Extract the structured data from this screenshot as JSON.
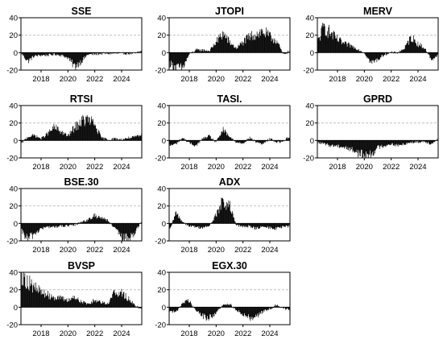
{
  "chart_data": [
    {
      "type": "area",
      "title": "SSE",
      "ylim": [
        -20,
        40
      ],
      "yticks": [
        -20,
        0,
        20,
        40
      ],
      "xlim": [
        2016.5,
        2025.5
      ],
      "xticks": [
        2018,
        2020,
        2022,
        2024
      ],
      "grid": true,
      "x": [
        2016.5,
        2017.0,
        2017.5,
        2018.0,
        2018.5,
        2019.0,
        2019.5,
        2020.0,
        2020.5,
        2021.0,
        2021.5,
        2022.0,
        2022.5,
        2023.0,
        2023.5,
        2024.0,
        2024.5,
        2025.0,
        2025.5
      ],
      "values": [
        0,
        -10,
        -4,
        -3,
        -3,
        -2,
        -3,
        -6,
        -16,
        -10,
        -2,
        -2,
        -1,
        -1,
        -1,
        -1,
        -1,
        -1,
        2
      ]
    },
    {
      "type": "area",
      "title": "JTOPI",
      "ylim": [
        -20,
        40
      ],
      "yticks": [
        -20,
        0,
        20,
        40
      ],
      "xlim": [
        2016.5,
        2025.5
      ],
      "xticks": [
        2018,
        2020,
        2022,
        2024
      ],
      "grid": true,
      "x": [
        2016.5,
        2017.0,
        2017.5,
        2018.0,
        2018.5,
        2019.0,
        2019.5,
        2020.0,
        2020.5,
        2021.0,
        2021.5,
        2022.0,
        2022.5,
        2023.0,
        2023.5,
        2024.0,
        2024.5,
        2025.0,
        2025.5
      ],
      "values": [
        -12,
        -17,
        -18,
        -2,
        3,
        3,
        2,
        12,
        22,
        12,
        5,
        12,
        18,
        22,
        24,
        18,
        14,
        -2,
        2
      ]
    },
    {
      "type": "area",
      "title": "MERV",
      "ylim": [
        -20,
        40
      ],
      "yticks": [
        -20,
        0,
        20,
        40
      ],
      "xlim": [
        2016.5,
        2025.5
      ],
      "xticks": [
        2018,
        2020,
        2022,
        2024
      ],
      "grid": true,
      "x": [
        2016.5,
        2017.0,
        2017.5,
        2018.0,
        2018.5,
        2019.0,
        2019.5,
        2020.0,
        2020.5,
        2021.0,
        2021.5,
        2022.0,
        2022.5,
        2023.0,
        2023.5,
        2024.0,
        2024.5,
        2025.0,
        2025.5
      ],
      "values": [
        12,
        30,
        22,
        15,
        10,
        8,
        4,
        0,
        -12,
        -8,
        -2,
        0,
        0,
        5,
        18,
        10,
        5,
        -8,
        -3
      ]
    },
    {
      "type": "area",
      "title": "RTSI",
      "ylim": [
        -20,
        40
      ],
      "yticks": [
        -20,
        0,
        20,
        40
      ],
      "xlim": [
        2016.5,
        2025.5
      ],
      "xticks": [
        2018,
        2020,
        2022,
        2024
      ],
      "grid": true,
      "x": [
        2016.5,
        2017.0,
        2017.5,
        2018.0,
        2018.5,
        2019.0,
        2019.5,
        2020.0,
        2020.5,
        2021.0,
        2021.5,
        2022.0,
        2022.5,
        2023.0,
        2023.5,
        2024.0,
        2024.5,
        2025.0,
        2025.5
      ],
      "values": [
        -4,
        4,
        6,
        2,
        8,
        15,
        10,
        5,
        15,
        22,
        24,
        18,
        3,
        1,
        2,
        1,
        3,
        4,
        6
      ]
    },
    {
      "type": "area",
      "title": "TASI.",
      "ylim": [
        -20,
        40
      ],
      "yticks": [
        -20,
        0,
        20,
        40
      ],
      "xlim": [
        2016.5,
        2025.5
      ],
      "xticks": [
        2018,
        2020,
        2022,
        2024
      ],
      "grid": true,
      "x": [
        2016.5,
        2017.0,
        2017.5,
        2018.0,
        2018.5,
        2019.0,
        2019.5,
        2020.0,
        2020.5,
        2021.0,
        2021.5,
        2022.0,
        2022.5,
        2023.0,
        2023.5,
        2024.0,
        2024.5,
        2025.0,
        2025.5
      ],
      "values": [
        -6,
        -4,
        3,
        -3,
        -6,
        2,
        5,
        -2,
        12,
        4,
        -2,
        -3,
        3,
        -2,
        -4,
        2,
        -2,
        -1,
        5
      ]
    },
    {
      "type": "area",
      "title": "GPRD",
      "ylim": [
        -20,
        40
      ],
      "yticks": [
        -20,
        0,
        20,
        40
      ],
      "xlim": [
        2016.5,
        2025.5
      ],
      "xticks": [
        2018,
        2020,
        2022,
        2024
      ],
      "grid": true,
      "x": [
        2016.5,
        2017.0,
        2017.5,
        2018.0,
        2018.5,
        2019.0,
        2019.5,
        2020.0,
        2020.5,
        2021.0,
        2021.5,
        2022.0,
        2022.5,
        2023.0,
        2023.5,
        2024.0,
        2024.5,
        2025.0,
        2025.5
      ],
      "values": [
        -2,
        -4,
        -6,
        -6,
        -8,
        -10,
        -14,
        -18,
        -16,
        -8,
        -6,
        -4,
        -6,
        -4,
        -2,
        -2,
        -1,
        -4,
        2
      ]
    },
    {
      "type": "area",
      "title": "BSE.30",
      "ylim": [
        -20,
        40
      ],
      "yticks": [
        -20,
        0,
        20,
        40
      ],
      "xlim": [
        2016.5,
        2025.5
      ],
      "xticks": [
        2018,
        2020,
        2022,
        2024
      ],
      "grid": true,
      "x": [
        2016.5,
        2017.0,
        2017.5,
        2018.0,
        2018.5,
        2019.0,
        2019.5,
        2020.0,
        2020.5,
        2021.0,
        2021.5,
        2022.0,
        2022.5,
        2023.0,
        2023.5,
        2024.0,
        2024.5,
        2025.0,
        2025.5
      ],
      "values": [
        -8,
        -18,
        -12,
        -6,
        -4,
        -4,
        -3,
        -3,
        -2,
        2,
        4,
        9,
        7,
        3,
        -6,
        -16,
        -18,
        -10,
        3
      ]
    },
    {
      "type": "area",
      "title": "ADX",
      "ylim": [
        -20,
        40
      ],
      "yticks": [
        -20,
        0,
        20,
        40
      ],
      "xlim": [
        2016.5,
        2025.5
      ],
      "xticks": [
        2018,
        2020,
        2022,
        2024
      ],
      "grid": true,
      "x": [
        2016.5,
        2017.0,
        2017.5,
        2018.0,
        2018.5,
        2019.0,
        2019.5,
        2020.0,
        2020.5,
        2021.0,
        2021.5,
        2022.0,
        2022.5,
        2023.0,
        2023.5,
        2024.0,
        2024.5,
        2025.0,
        2025.5
      ],
      "values": [
        -10,
        12,
        2,
        -3,
        -4,
        -5,
        -3,
        10,
        25,
        20,
        -2,
        -4,
        -3,
        -6,
        -4,
        -5,
        -6,
        -4,
        -3
      ]
    },
    {
      "type": "area",
      "title": "BVSP",
      "ylim": [
        -20,
        40
      ],
      "yticks": [
        -20,
        0,
        20,
        40
      ],
      "xlim": [
        2016.5,
        2025.5
      ],
      "xticks": [
        2018,
        2020,
        2022,
        2024
      ],
      "grid": true,
      "x": [
        2016.5,
        2017.0,
        2017.5,
        2018.0,
        2018.5,
        2019.0,
        2019.5,
        2020.0,
        2020.5,
        2021.0,
        2021.5,
        2022.0,
        2022.5,
        2023.0,
        2023.5,
        2024.0,
        2024.5,
        2025.0,
        2025.5
      ],
      "values": [
        38,
        30,
        22,
        18,
        14,
        12,
        10,
        8,
        12,
        6,
        4,
        8,
        6,
        4,
        18,
        16,
        10,
        2,
        -2
      ]
    },
    {
      "type": "area",
      "title": "EGX.30",
      "ylim": [
        -20,
        40
      ],
      "yticks": [
        -20,
        0,
        20,
        40
      ],
      "xlim": [
        2016.5,
        2025.5
      ],
      "xticks": [
        2018,
        2020,
        2022,
        2024
      ],
      "grid": true,
      "x": [
        2016.5,
        2017.0,
        2017.5,
        2018.0,
        2018.5,
        2019.0,
        2019.5,
        2020.0,
        2020.5,
        2021.0,
        2021.5,
        2022.0,
        2022.5,
        2023.0,
        2023.5,
        2024.0,
        2024.5,
        2025.0,
        2025.5
      ],
      "values": [
        -4,
        -6,
        5,
        8,
        -4,
        -10,
        -13,
        -6,
        2,
        4,
        -3,
        -8,
        -12,
        -10,
        -5,
        -2,
        3,
        -1,
        -3
      ]
    }
  ]
}
